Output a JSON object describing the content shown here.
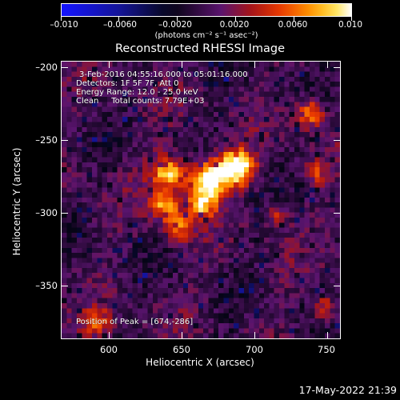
{
  "colorbar": {
    "ticks": [
      "–0.010",
      "–0.0060",
      "–0.0020",
      "0.0020",
      "0.0060",
      "0.010"
    ],
    "units": "(photons cm⁻² s⁻¹ asec⁻²)"
  },
  "title": "Reconstructed RHESSI Image",
  "annotation": {
    "time_range": "3-Feb-2016 04:55:16.000 to 05:01:16.000",
    "detectors": "Detectors: 1F 5F 7F, Att 0",
    "energy": "Energy Range: 12.0 - 25.0 keV",
    "clean": "Clean     Total counts: 7.79E+03",
    "peak": "Position of Peak = [674,-286]"
  },
  "axes": {
    "xlabel": "Heliocentric X (arcsec)",
    "ylabel": "Heliocentric Y (arcsec)",
    "xticks": [
      "600",
      "650",
      "700",
      "750"
    ],
    "yticks": [
      "–200",
      "–250",
      "–300",
      "–350"
    ]
  },
  "timestamp": "17-May-2022 21:39"
}
